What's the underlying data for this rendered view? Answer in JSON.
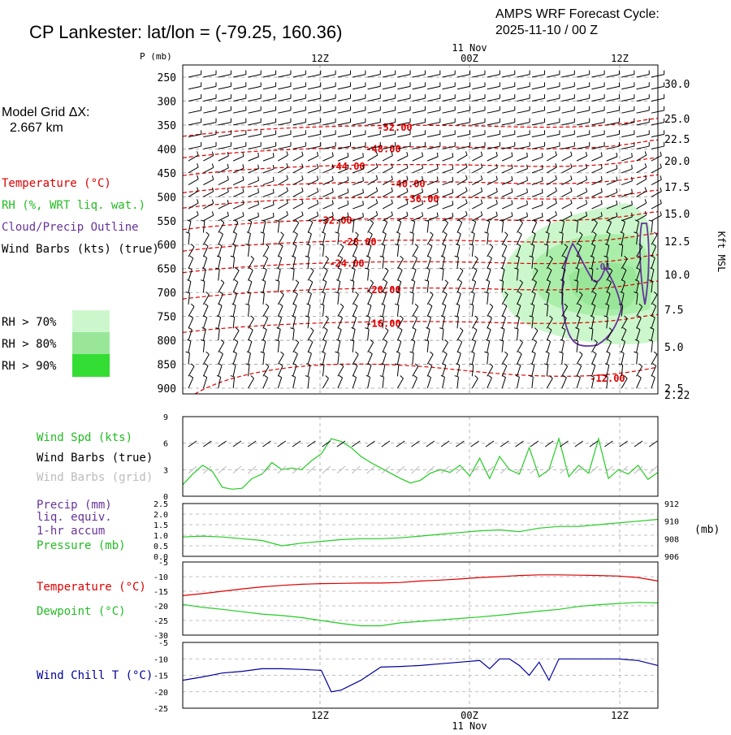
{
  "header": {
    "station": "CP Lankester:  lat/lon = (-79.25, 160.36)",
    "cycle_line1": "AMPS WRF Forecast Cycle:",
    "cycle_line2": "2025-11-10 / 00  Z",
    "grid_label": "Model Grid ΔX:",
    "grid_value": "2.667 km"
  },
  "time_axis": {
    "top_ticks": [
      "12Z",
      "00Z",
      "12Z"
    ],
    "date_label": "11 Nov",
    "bottom_ticks": [
      "12Z",
      "00Z",
      "12Z"
    ]
  },
  "legend": {
    "temperature": "Temperature (°C)",
    "rh": "RH (%, WRT liq. wat.)",
    "cloud": "Cloud/Precip Outline",
    "wind": "Wind Barbs (kts) (true)",
    "rh70": "RH > 70%",
    "rh80": "RH > 80%",
    "rh90": "RH > 90%",
    "rh70_color": "#ccf7cc",
    "rh80_color": "#99e699",
    "rh90_color": "#33dd33"
  },
  "panel1": {
    "p_axis_label": "P (mb)",
    "right_axis_label": "Kft MSL",
    "p_ticks": [
      "250",
      "300",
      "350",
      "400",
      "450",
      "500",
      "550",
      "600",
      "650",
      "700",
      "750",
      "800",
      "850",
      "900"
    ],
    "kft_ticks": [
      "30.0",
      "25.0",
      "22.5",
      "20.0",
      "17.5",
      "15.0",
      "12.5",
      "10.0",
      "7.5",
      "5.0",
      "2.5",
      "2.22"
    ],
    "temp_contour_labels": [
      "-52.00",
      "-48.00",
      "-44.00",
      "-40.00",
      "-36.00",
      "-32.00",
      "-28.00",
      "-24.00",
      "-20.00",
      "-16.00",
      "-12.00"
    ],
    "cloud_label": ".01"
  },
  "panel2": {
    "label_speed": "Wind Spd (kts)",
    "label_barbs_true": "Wind Barbs (true)",
    "label_barbs_grid": "Wind Barbs (grid)",
    "y_ticks": [
      "9",
      "6",
      "3",
      "0"
    ]
  },
  "panel3": {
    "label_precip1": "Precip (mm)",
    "label_precip2": "liq. equiv.",
    "label_precip3": "1-hr accum",
    "label_pressure": "Pressure (mb)",
    "left_ticks": [
      "2.5",
      "2.0",
      "1.5",
      "1.0",
      "0.5",
      "0.0"
    ],
    "right_ticks": [
      "912",
      "910",
      "908",
      "906"
    ],
    "right_unit": "(mb)"
  },
  "panel4": {
    "label_temp": "Temperature (°C)",
    "label_dew": "Dewpoint (°C)",
    "y_ticks": [
      "-5",
      "-10",
      "-15",
      "-20",
      "-25",
      "-30"
    ]
  },
  "panel5": {
    "label_chill": "Wind Chill T (°C)",
    "y_ticks": [
      "-5",
      "-10",
      "-15",
      "-20",
      "-25"
    ]
  },
  "colors": {
    "temperature": "#dd0000",
    "green": "#22cc22",
    "purple": "#663399",
    "blue": "#000099",
    "grid_barb": "#bbbbbb"
  },
  "chart_data": [
    {
      "type": "line",
      "panel": "time-height cross section",
      "x_hours": [
        0,
        6,
        12,
        18,
        24,
        30,
        36,
        42,
        48
      ],
      "y_pressure_mb_range": [
        250,
        910
      ],
      "temperature_contours_c": [
        -52,
        -48,
        -44,
        -40,
        -36,
        -32,
        -28,
        -24,
        -20,
        -16,
        -12
      ],
      "cloud_outline_label": ".01"
    },
    {
      "type": "line",
      "panel": "wind speed",
      "ylim": [
        0,
        9
      ],
      "x_hours": [
        0,
        1,
        2,
        3,
        4,
        5,
        6,
        7,
        8,
        9,
        10,
        11,
        12,
        13,
        14,
        15,
        16,
        17,
        18,
        19,
        20,
        21,
        22,
        23,
        24,
        25,
        26,
        27,
        28,
        29,
        30,
        31,
        32,
        33,
        34,
        35,
        36,
        37,
        38,
        39,
        40,
        41,
        42,
        43,
        44,
        45,
        46,
        47,
        48
      ],
      "series": [
        {
          "name": "Wind Spd (kts)",
          "values": [
            1.3,
            2.5,
            3.5,
            2.8,
            1.0,
            0.8,
            0.9,
            2.0,
            2.5,
            3.8,
            3.0,
            3.2,
            3.0,
            4.0,
            4.8,
            6.5,
            6.2,
            5.5,
            4.5,
            3.8,
            3.2,
            2.6,
            2.0,
            1.5,
            1.8,
            2.6,
            3.0,
            2.7,
            3.5,
            2.3,
            4.3,
            2.0,
            4.5,
            3.0,
            2.5,
            5.5,
            2.2,
            3.0,
            6.5,
            2.2,
            3.5,
            2.6,
            6.5,
            2.0,
            3.0,
            2.5,
            3.5,
            1.9,
            2.7
          ]
        }
      ]
    },
    {
      "type": "line",
      "panel": "pressure",
      "ylim": [
        906,
        912
      ],
      "x_hours": [
        0,
        2,
        4,
        6,
        8,
        10,
        12,
        14,
        16,
        18,
        20,
        22,
        24,
        26,
        28,
        30,
        32,
        34,
        36,
        38,
        40,
        42,
        44,
        46,
        48
      ],
      "series": [
        {
          "name": "Pressure (mb)",
          "values": [
            908.2,
            908.3,
            908.2,
            908.0,
            907.8,
            907.2,
            907.5,
            907.7,
            907.9,
            908.0,
            908.0,
            908.1,
            908.3,
            908.5,
            908.7,
            908.9,
            909.0,
            908.8,
            909.2,
            909.4,
            909.4,
            909.6,
            909.8,
            910.0,
            910.2
          ]
        }
      ]
    },
    {
      "type": "line",
      "panel": "temperature and dewpoint",
      "ylim": [
        -30,
        -5
      ],
      "x_hours": [
        0,
        2,
        4,
        6,
        8,
        10,
        12,
        14,
        16,
        18,
        20,
        22,
        24,
        26,
        28,
        30,
        32,
        34,
        36,
        38,
        40,
        42,
        44,
        46,
        48
      ],
      "series": [
        {
          "name": "Temperature (°C)",
          "values": [
            -16.5,
            -15.8,
            -15.0,
            -14.2,
            -13.5,
            -13.0,
            -12.6,
            -12.4,
            -12.3,
            -12.2,
            -12.2,
            -12.0,
            -11.5,
            -11.2,
            -10.8,
            -10.3,
            -10.0,
            -9.6,
            -9.4,
            -9.4,
            -9.5,
            -9.6,
            -9.8,
            -10.3,
            -11.5
          ]
        },
        {
          "name": "Dewpoint (°C)",
          "values": [
            -19.5,
            -20.5,
            -21.2,
            -22.0,
            -22.8,
            -23.3,
            -24.0,
            -25.0,
            -26.0,
            -26.8,
            -26.8,
            -25.8,
            -25.3,
            -24.8,
            -24.3,
            -23.8,
            -23.2,
            -22.5,
            -21.8,
            -21.2,
            -20.2,
            -19.6,
            -19.2,
            -18.8,
            -19.0
          ]
        }
      ]
    },
    {
      "type": "line",
      "panel": "wind chill",
      "ylim": [
        -25,
        -5
      ],
      "x_hours": [
        0,
        2,
        4,
        6,
        8,
        10,
        12,
        14,
        15,
        16,
        18,
        20,
        22,
        24,
        26,
        28,
        30,
        31,
        32,
        33,
        34,
        35,
        36,
        37,
        38,
        40,
        42,
        44,
        46,
        48
      ],
      "series": [
        {
          "name": "Wind Chill T (°C)",
          "values": [
            -16.5,
            -15.5,
            -14.3,
            -13.8,
            -13.0,
            -13.0,
            -13.2,
            -13.5,
            -20.0,
            -19.5,
            -16.5,
            -12.5,
            -12.3,
            -12.0,
            -11.5,
            -11.0,
            -10.5,
            -13.0,
            -10.0,
            -10.0,
            -12.0,
            -15.0,
            -11.0,
            -16.5,
            -10.0,
            -10.0,
            -10.0,
            -10.0,
            -10.5,
            -12.0
          ]
        }
      ]
    }
  ]
}
